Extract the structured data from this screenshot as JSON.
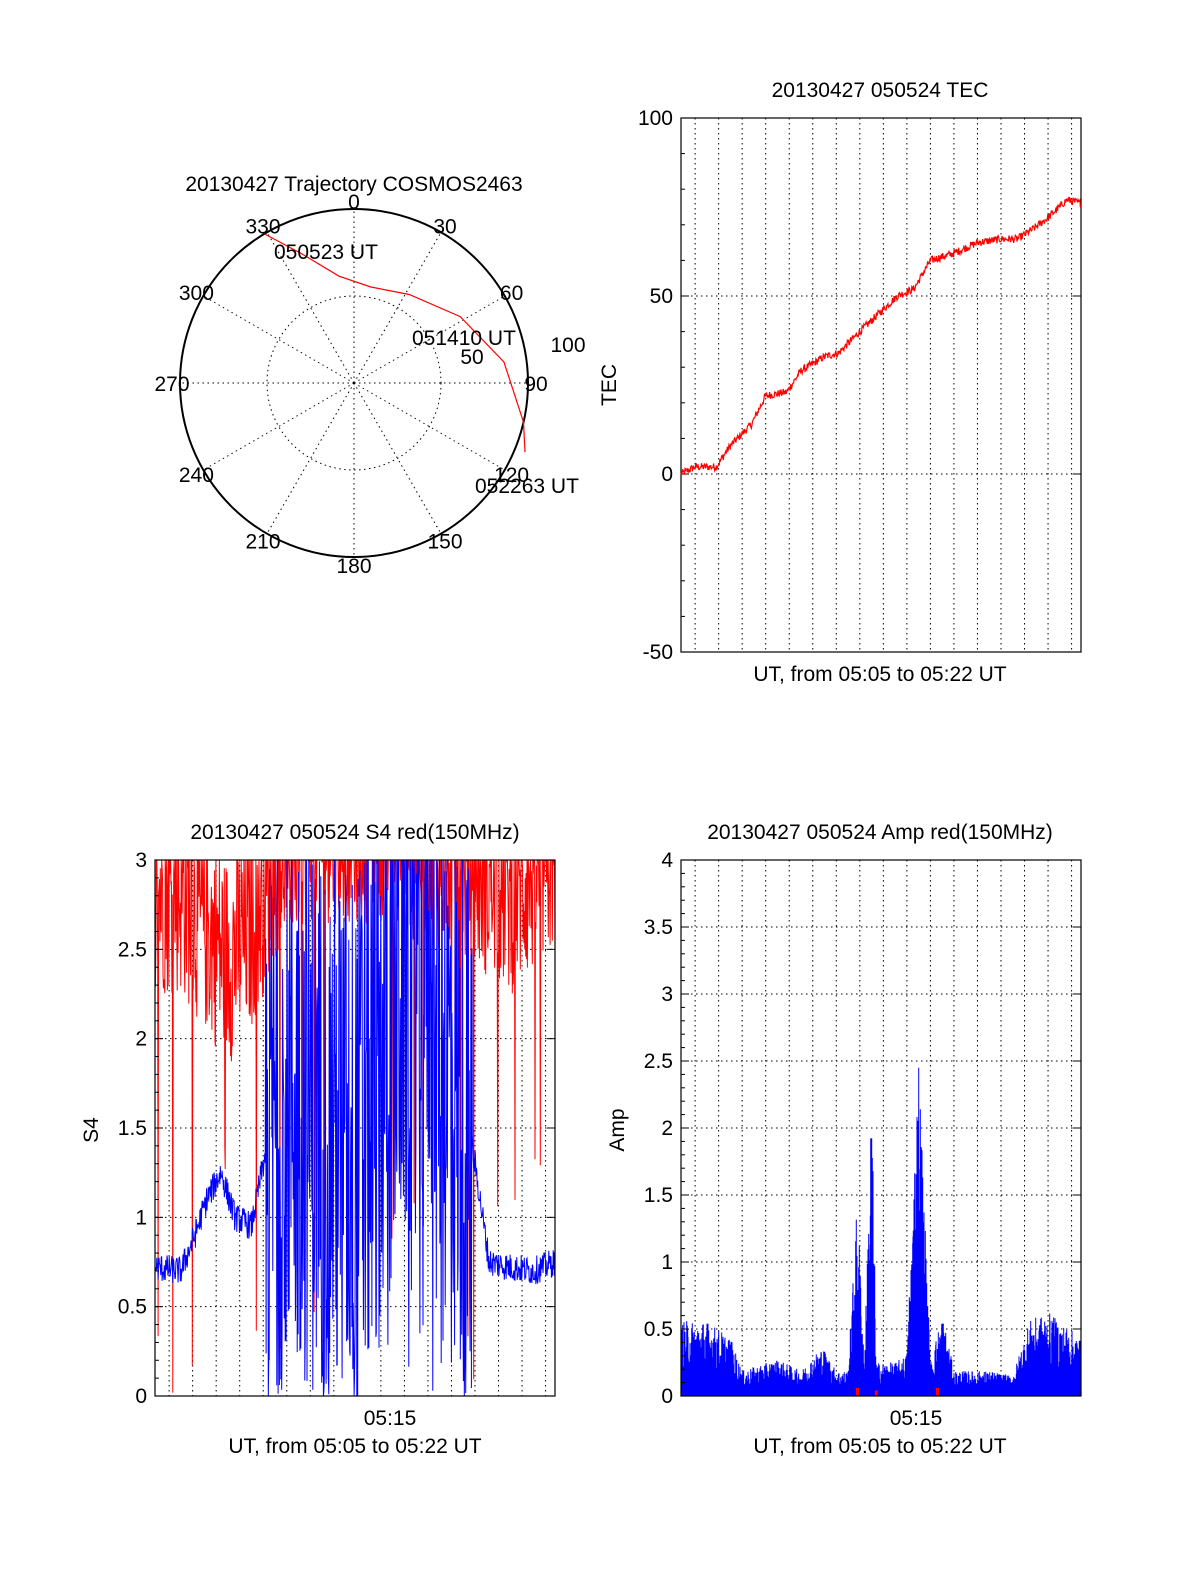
{
  "chart_data": [
    {
      "type": "polar",
      "title": "20130427 Trajectory COSMOS2463",
      "angle_labels": [
        "0",
        "30",
        "60",
        "90",
        "120",
        "150",
        "180",
        "210",
        "240",
        "270",
        "300",
        "330"
      ],
      "radius_labels": [
        "50",
        "100"
      ],
      "r_lim": [
        0,
        100
      ],
      "grid": true,
      "series": [
        {
          "color": "#ff0000",
          "points": [
            {
              "az": 329,
              "r": 100
            },
            {
              "az": 338,
              "r": 80
            },
            {
              "az": 352,
              "r": 62
            },
            {
              "az": 10,
              "r": 56
            },
            {
              "az": 32,
              "r": 60
            },
            {
              "az": 58,
              "r": 72
            },
            {
              "az": 82,
              "r": 87
            },
            {
              "az": 103,
              "r": 100
            },
            {
              "az": 112,
              "r": 106
            }
          ]
        }
      ],
      "annotations": [
        "050523 UT",
        "051410 UT",
        "052263 UT"
      ]
    },
    {
      "type": "line",
      "title": "20130427 050524 TEC",
      "xlabel": "UT, from 05:05 to 05:22 UT",
      "ylabel": "TEC",
      "ylim": [
        -50,
        100
      ],
      "yticks": [
        "-50",
        "0",
        "50",
        "100"
      ],
      "xlim_minutes": [
        5.4,
        22.4
      ],
      "grid": true,
      "series": [
        {
          "color": "#ff0000",
          "x": [
            5.4,
            6.0,
            6.9,
            7.5,
            8.4,
            9.0,
            9.9,
            10.5,
            11.5,
            12.1,
            13.0,
            13.8,
            14.6,
            15.3,
            16.0,
            17.0,
            18.0,
            19.0,
            19.7,
            20.4,
            21.0,
            21.8,
            22.4
          ],
          "y": [
            0,
            2,
            2,
            8,
            14,
            22,
            23,
            29,
            33,
            34,
            40,
            45,
            50,
            52,
            60,
            62,
            65,
            66,
            66,
            69,
            72,
            77,
            76
          ]
        }
      ]
    },
    {
      "type": "line",
      "title": "20130427 050524 S4 red(150MHz)",
      "xlabel": "UT, from 05:05 to 05:22 UT",
      "ylabel": "S4",
      "ylim": [
        0,
        3
      ],
      "yticks": [
        "0",
        "0.5",
        "1",
        "1.5",
        "2",
        "2.5",
        "3"
      ],
      "xticks": [
        "05:15"
      ],
      "xlim_minutes": [
        5.4,
        22.4
      ],
      "grid": true,
      "series": [
        {
          "color": "#ff0000",
          "style": "noisy-dense",
          "x": [
            5.4,
            6.5,
            7.5,
            8.5,
            9.5,
            10.5,
            12.0,
            14.0,
            16.0,
            18.0,
            19.5,
            20.5,
            21.5,
            22.4
          ],
          "y": [
            2.6,
            2.6,
            2.4,
            2.2,
            2.4,
            2.8,
            3.0,
            3.0,
            3.0,
            2.8,
            2.7,
            2.6,
            2.7,
            2.8
          ]
        },
        {
          "color": "#0000ff",
          "style": "noisy-dense",
          "x": [
            5.4,
            6.5,
            7.1,
            7.6,
            8.2,
            8.8,
            9.5,
            10.0,
            11.0,
            12.0,
            13.0,
            14.0,
            15.0,
            16.0,
            17.0,
            18.0,
            19.0,
            19.6,
            20.5,
            21.5,
            22.4
          ],
          "y": [
            0.72,
            0.7,
            0.9,
            1.1,
            1.25,
            1.0,
            0.95,
            1.3,
            1.8,
            1.6,
            1.5,
            1.4,
            1.9,
            2.4,
            2.6,
            1.8,
            1.3,
            0.75,
            0.72,
            0.7,
            0.75
          ]
        }
      ]
    },
    {
      "type": "line",
      "title": "20130427 050524 Amp red(150MHz)",
      "xlabel": "UT, from 05:05 to 05:22 UT",
      "ylabel": "Amp",
      "ylim": [
        0,
        4
      ],
      "yticks": [
        "0",
        "0.5",
        "1",
        "1.5",
        "2",
        "2.5",
        "3",
        "3.5",
        "4"
      ],
      "xticks": [
        "05:15"
      ],
      "xlim_minutes": [
        5.4,
        22.4
      ],
      "grid": true,
      "series": [
        {
          "color": "#0000ff",
          "style": "noisy-dense",
          "x": [
            5.4,
            6.5,
            7.5,
            8.0,
            9.5,
            10.5,
            11.4,
            12.0,
            12.5,
            12.9,
            13.2,
            13.5,
            13.7,
            14.0,
            14.5,
            15.0,
            15.5,
            16.0,
            16.5,
            17.0,
            18.5,
            19.5,
            20.2,
            21.0,
            22.4
          ],
          "y": [
            0.45,
            0.45,
            0.35,
            0.15,
            0.22,
            0.15,
            0.3,
            0.15,
            0.15,
            1.2,
            0.2,
            1.9,
            0.2,
            0.2,
            0.2,
            0.25,
            2.1,
            0.2,
            0.5,
            0.15,
            0.15,
            0.12,
            0.45,
            0.5,
            0.35
          ]
        },
        {
          "color": "#ff0000",
          "style": "spikes",
          "x": [
            12.9,
            13.7,
            16.3
          ],
          "y": [
            0.06,
            0.04,
            0.06
          ]
        }
      ]
    }
  ]
}
